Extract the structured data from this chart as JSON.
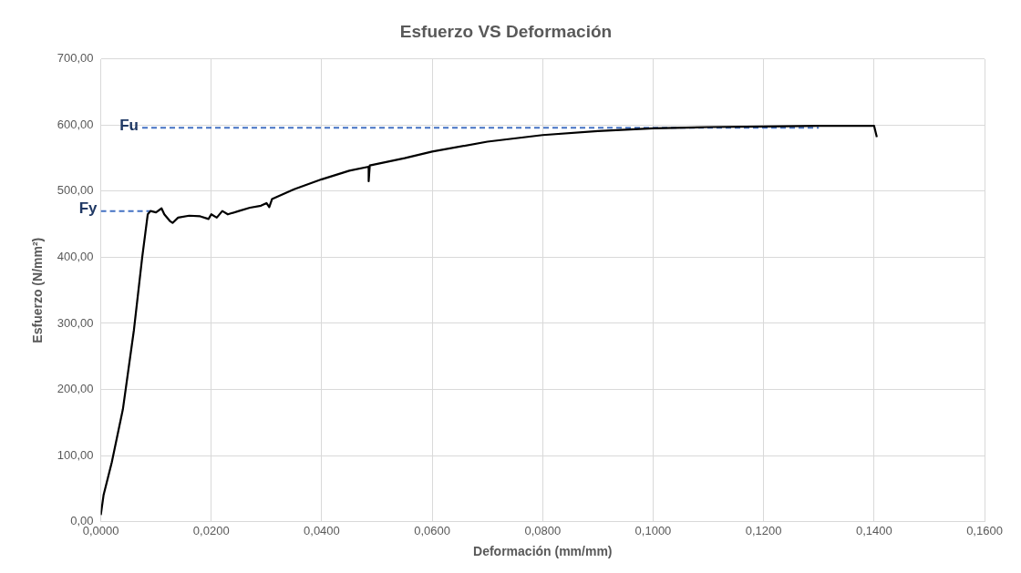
{
  "chart_data": {
    "type": "line",
    "title": "Esfuerzo VS Deformación",
    "xlabel": "Deformación (mm/mm)",
    "ylabel": "Esfuerzo (N/mm²)",
    "xlim": [
      0,
      0.16
    ],
    "ylim": [
      0,
      700
    ],
    "xticks": [
      {
        "value": 0,
        "label": "0,0000"
      },
      {
        "value": 0.02,
        "label": "0,0200"
      },
      {
        "value": 0.04,
        "label": "0,0400"
      },
      {
        "value": 0.06,
        "label": "0,0600"
      },
      {
        "value": 0.08,
        "label": "0,0800"
      },
      {
        "value": 0.1,
        "label": "0,1000"
      },
      {
        "value": 0.12,
        "label": "0,1200"
      },
      {
        "value": 0.14,
        "label": "0,1400"
      },
      {
        "value": 0.16,
        "label": "0,1600"
      }
    ],
    "yticks": [
      {
        "value": 0,
        "label": "0,00"
      },
      {
        "value": 100,
        "label": "100,00"
      },
      {
        "value": 200,
        "label": "200,00"
      },
      {
        "value": 300,
        "label": "300,00"
      },
      {
        "value": 400,
        "label": "400,00"
      },
      {
        "value": 500,
        "label": "500,00"
      },
      {
        "value": 600,
        "label": "600,00"
      },
      {
        "value": 700,
        "label": "700,00"
      }
    ],
    "grid": true,
    "legend": false,
    "marker": "none",
    "series": [
      {
        "color": "#000000",
        "line_style": "solid",
        "x": [
          0,
          0.0005,
          0.002,
          0.004,
          0.006,
          0.0075,
          0.0085,
          0.009,
          0.01,
          0.011,
          0.0115,
          0.0125,
          0.013,
          0.014,
          0.016,
          0.018,
          0.0195,
          0.02,
          0.021,
          0.022,
          0.023,
          0.025,
          0.027,
          0.029,
          0.03,
          0.0305,
          0.031,
          0.035,
          0.04,
          0.045,
          0.0485,
          0.0485,
          0.0487,
          0.055,
          0.06,
          0.07,
          0.08,
          0.09,
          0.1,
          0.11,
          0.12,
          0.13,
          0.14,
          0.1405
        ],
        "values": [
          10,
          40,
          90,
          170,
          290,
          400,
          465,
          470,
          468,
          474,
          465,
          455,
          452,
          460,
          463,
          462,
          458,
          465,
          460,
          470,
          465,
          470,
          475,
          478,
          482,
          476,
          488,
          503,
          518,
          531,
          537,
          515,
          539,
          550,
          560,
          575,
          585,
          591,
          595,
          597,
          598,
          599,
          599,
          582
        ]
      },
      {
        "name": "Fu",
        "color": "#4472c4",
        "line_style": "dashed",
        "x": [
          0.0075,
          0.13
        ],
        "values": [
          596,
          596
        ]
      },
      {
        "name": "Fy",
        "color": "#4472c4",
        "line_style": "dashed",
        "x": [
          0,
          0.009
        ],
        "values": [
          470,
          470
        ]
      }
    ]
  }
}
